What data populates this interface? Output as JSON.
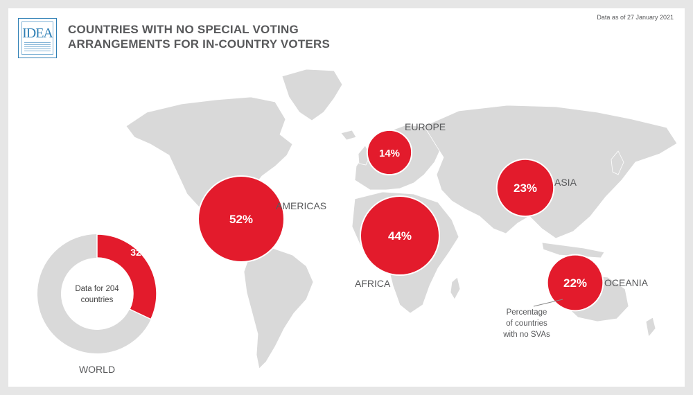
{
  "header": {
    "title_line1": "COUNTRIES WITH NO SPECIAL VOTING",
    "title_line2": "ARRANGEMENTS FOR IN-COUNTRY VOTERS",
    "date_note": "Data as of 27 January 2021",
    "logo_text": "IDEA"
  },
  "colors": {
    "accent": "#e31b2c",
    "land": "#d9d9d9",
    "donut_rest": "#d9d9d9",
    "text": "#58595b"
  },
  "chart_data": [
    {
      "type": "bubble-map",
      "title": "COUNTRIES WITH NO SPECIAL VOTING ARRANGEMENTS FOR IN-COUNTRY VOTERS",
      "annotation": [
        "Percentage",
        "of countries",
        "with no SVAs"
      ],
      "regions": [
        {
          "name": "AMERICAS",
          "value": 52,
          "label": "52%"
        },
        {
          "name": "EUROPE",
          "value": 14,
          "label": "14%"
        },
        {
          "name": "AFRICA",
          "value": 44,
          "label": "44%"
        },
        {
          "name": "ASIA",
          "value": 23,
          "label": "23%"
        },
        {
          "name": "OCEANIA",
          "value": 22,
          "label": "22%"
        }
      ]
    },
    {
      "type": "pie",
      "name": "WORLD",
      "center_text": [
        "Data for 204",
        "countries"
      ],
      "value": 32,
      "label": "32%",
      "total": 100
    }
  ]
}
